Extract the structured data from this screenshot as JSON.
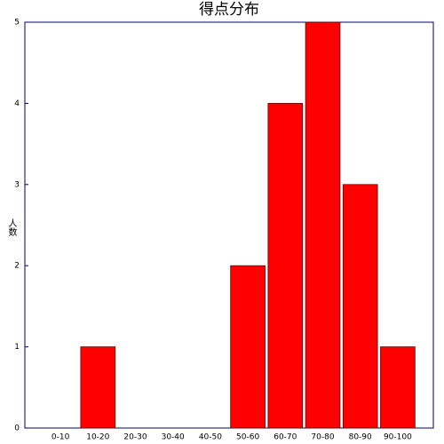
{
  "chart_data": {
    "type": "bar",
    "title": "得点分布",
    "y_label": "人数",
    "categories": [
      "0-10",
      "10-20",
      "20-30",
      "30-40",
      "40-50",
      "50-60",
      "60-70",
      "70-80",
      "80-90",
      "90-100"
    ],
    "values": [
      0,
      1,
      0,
      0,
      0,
      2,
      4,
      5,
      3,
      1
    ],
    "color": "#ff0000",
    "ylim": [
      0,
      5
    ],
    "yticks": [
      0,
      1,
      2,
      3,
      4,
      5
    ],
    "grid": false
  }
}
